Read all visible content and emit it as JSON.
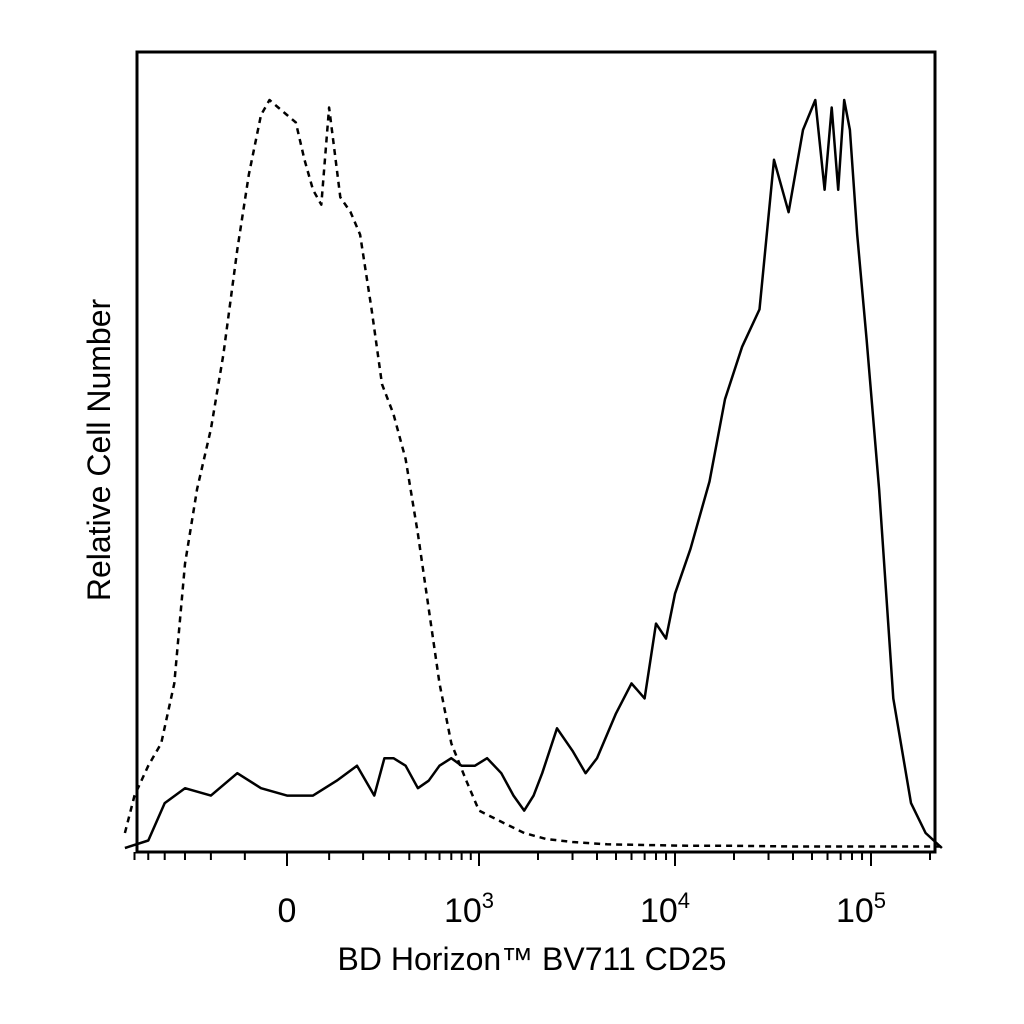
{
  "chart_data": {
    "type": "line",
    "title": "",
    "xlabel": "BD Horizon™ BV711 CD25",
    "ylabel": "Relative Cell Number",
    "x_scale": "biexponential (linear near 0, log above ~10^3)",
    "xlim": [
      -700,
      230000
    ],
    "ylim": [
      0,
      1
    ],
    "grid": false,
    "legend": "none",
    "x_ticks": [
      {
        "base": "0",
        "exp": ""
      },
      {
        "base": "10",
        "exp": "3"
      },
      {
        "base": "10",
        "exp": "4"
      },
      {
        "base": "10",
        "exp": "5"
      }
    ],
    "series": [
      {
        "style": "dashed",
        "color": "#000000",
        "x": [
          -680,
          -600,
          -500,
          -420,
          -350,
          -300,
          -250,
          -200,
          -160,
          -120,
          -90,
          -60,
          -40,
          -20,
          0,
          20,
          40,
          60,
          80,
          100,
          130,
          160,
          190,
          230,
          270,
          320,
          380,
          450,
          520,
          600,
          700,
          850,
          1000,
          1300,
          1700,
          2200,
          3000,
          4500,
          7000,
          12000,
          20000,
          40000,
          80000,
          150000,
          230000
        ],
        "y": [
          0.02,
          0.07,
          0.11,
          0.14,
          0.22,
          0.38,
          0.48,
          0.56,
          0.66,
          0.8,
          0.9,
          0.98,
          1.0,
          0.99,
          0.98,
          0.97,
          0.92,
          0.88,
          0.86,
          0.99,
          0.87,
          0.85,
          0.82,
          0.72,
          0.62,
          0.58,
          0.52,
          0.42,
          0.32,
          0.22,
          0.14,
          0.09,
          0.05,
          0.035,
          0.02,
          0.012,
          0.008,
          0.005,
          0.004,
          0.003,
          0.003,
          0.002,
          0.002,
          0.002,
          0.002
        ]
      },
      {
        "style": "solid",
        "color": "#000000",
        "x": [
          -680,
          -500,
          -400,
          -300,
          -200,
          -120,
          -60,
          0,
          60,
          120,
          180,
          240,
          280,
          320,
          380,
          450,
          520,
          600,
          700,
          800,
          950,
          1100,
          1300,
          1500,
          1700,
          1900,
          2100,
          2500,
          3000,
          3500,
          4000,
          5000,
          6000,
          7000,
          8000,
          9000,
          10000,
          12000,
          15000,
          18000,
          22000,
          27000,
          32000,
          38000,
          45000,
          52000,
          58000,
          63000,
          68000,
          73000,
          78000,
          85000,
          95000,
          110000,
          130000,
          160000,
          190000,
          230000
        ],
        "y": [
          0.0,
          0.01,
          0.06,
          0.08,
          0.07,
          0.1,
          0.08,
          0.07,
          0.07,
          0.09,
          0.11,
          0.07,
          0.12,
          0.12,
          0.11,
          0.08,
          0.09,
          0.11,
          0.12,
          0.11,
          0.11,
          0.12,
          0.1,
          0.07,
          0.05,
          0.07,
          0.1,
          0.16,
          0.13,
          0.1,
          0.12,
          0.18,
          0.22,
          0.2,
          0.3,
          0.28,
          0.34,
          0.4,
          0.49,
          0.6,
          0.67,
          0.72,
          0.92,
          0.85,
          0.96,
          1.0,
          0.88,
          0.99,
          0.88,
          1.0,
          0.96,
          0.82,
          0.68,
          0.48,
          0.2,
          0.06,
          0.02,
          0.0
        ]
      }
    ]
  }
}
